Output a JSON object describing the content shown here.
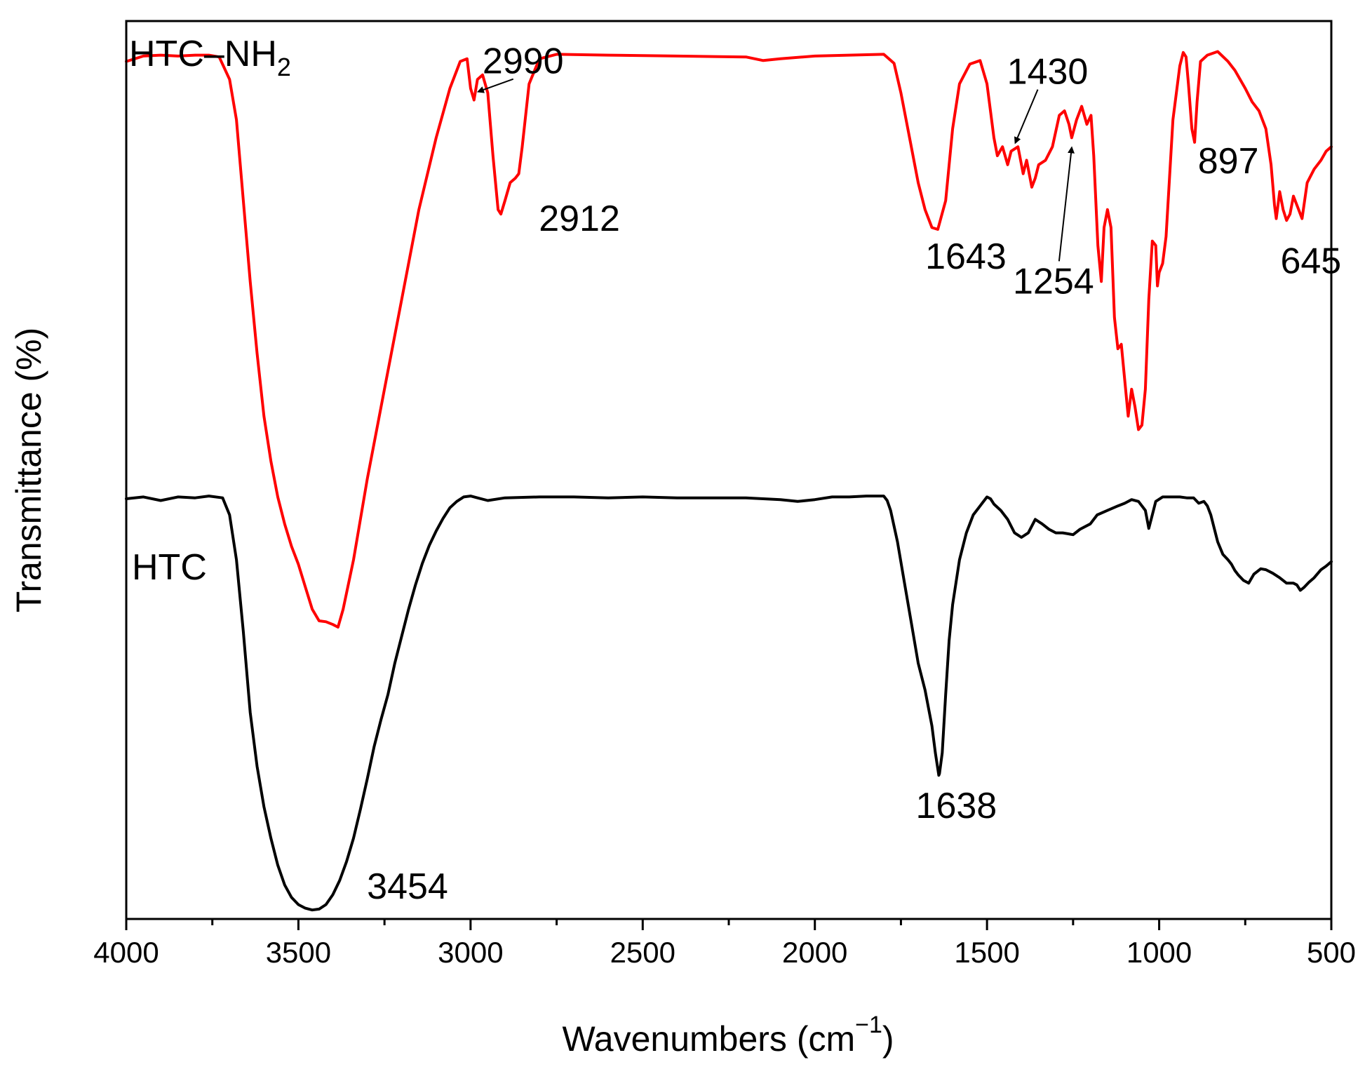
{
  "chart_data": {
    "type": "line",
    "title": "",
    "xlabel": "Wavenumbers (cm",
    "xlabel_sup": "−1",
    "xlabel_end": ")",
    "ylabel": "Transmittance (%)",
    "xlim": [
      4000,
      500
    ],
    "x_reversed": true,
    "ylim": [
      0,
      100
    ],
    "y_ticks_shown": false,
    "grid": false,
    "legend": "none (series labelled inline)",
    "x_ticks": [
      4000,
      3500,
      3000,
      2500,
      2000,
      1500,
      1000,
      500
    ],
    "x_tick_labels": [
      "4000",
      "3500",
      "3000",
      "2500",
      "2000",
      "1500",
      "1000",
      "500"
    ],
    "series": [
      {
        "name": "HTC–NH",
        "name_sub": "2",
        "color": "#ff0000",
        "points": [
          [
            4000,
            95.5
          ],
          [
            3950,
            96.1
          ],
          [
            3900,
            96.2
          ],
          [
            3850,
            96.1
          ],
          [
            3800,
            96.2
          ],
          [
            3760,
            96.2
          ],
          [
            3730,
            96.0
          ],
          [
            3700,
            93.5
          ],
          [
            3680,
            89
          ],
          [
            3660,
            80
          ],
          [
            3640,
            71
          ],
          [
            3620,
            63
          ],
          [
            3600,
            56
          ],
          [
            3580,
            51
          ],
          [
            3560,
            47
          ],
          [
            3540,
            44
          ],
          [
            3520,
            41.5
          ],
          [
            3500,
            39.5
          ],
          [
            3480,
            37
          ],
          [
            3460,
            34.5
          ],
          [
            3440,
            33.2
          ],
          [
            3420,
            33.1
          ],
          [
            3400,
            32.8
          ],
          [
            3385,
            32.5
          ],
          [
            3370,
            34.5
          ],
          [
            3340,
            40
          ],
          [
            3300,
            49
          ],
          [
            3250,
            59
          ],
          [
            3200,
            69
          ],
          [
            3150,
            79
          ],
          [
            3100,
            87
          ],
          [
            3060,
            92.5
          ],
          [
            3030,
            95.5
          ],
          [
            3010,
            95.8
          ],
          [
            3000,
            92.5
          ],
          [
            2990,
            91.2
          ],
          [
            2980,
            93.5
          ],
          [
            2965,
            94.0
          ],
          [
            2950,
            92
          ],
          [
            2935,
            85
          ],
          [
            2920,
            79
          ],
          [
            2912,
            78.5
          ],
          [
            2900,
            80
          ],
          [
            2885,
            82
          ],
          [
            2870,
            82.5
          ],
          [
            2860,
            83
          ],
          [
            2850,
            86
          ],
          [
            2830,
            93
          ],
          [
            2800,
            95.8
          ],
          [
            2750,
            96.3
          ],
          [
            2600,
            96.2
          ],
          [
            2400,
            96.1
          ],
          [
            2200,
            96.0
          ],
          [
            2150,
            95.6
          ],
          [
            2100,
            95.8
          ],
          [
            2000,
            96.1
          ],
          [
            1900,
            96.2
          ],
          [
            1800,
            96.3
          ],
          [
            1770,
            95.3
          ],
          [
            1750,
            92
          ],
          [
            1720,
            86
          ],
          [
            1700,
            82
          ],
          [
            1680,
            79
          ],
          [
            1660,
            77
          ],
          [
            1643,
            76.8
          ],
          [
            1620,
            80
          ],
          [
            1600,
            88
          ],
          [
            1580,
            93
          ],
          [
            1550,
            95.2
          ],
          [
            1520,
            95.6
          ],
          [
            1500,
            93
          ],
          [
            1480,
            87
          ],
          [
            1470,
            85
          ],
          [
            1455,
            86
          ],
          [
            1440,
            84
          ],
          [
            1430,
            85.5
          ],
          [
            1410,
            86
          ],
          [
            1395,
            83
          ],
          [
            1385,
            84.5
          ],
          [
            1370,
            81.5
          ],
          [
            1360,
            82.5
          ],
          [
            1350,
            84
          ],
          [
            1330,
            84.5
          ],
          [
            1310,
            86
          ],
          [
            1290,
            89.5
          ],
          [
            1275,
            90
          ],
          [
            1262,
            88.5
          ],
          [
            1254,
            87
          ],
          [
            1240,
            89
          ],
          [
            1225,
            90.5
          ],
          [
            1210,
            88.5
          ],
          [
            1198,
            89.5
          ],
          [
            1190,
            85
          ],
          [
            1178,
            75
          ],
          [
            1168,
            71
          ],
          [
            1160,
            77
          ],
          [
            1150,
            79
          ],
          [
            1140,
            77
          ],
          [
            1130,
            67
          ],
          [
            1120,
            63.5
          ],
          [
            1110,
            64
          ],
          [
            1100,
            60
          ],
          [
            1090,
            56
          ],
          [
            1080,
            59
          ],
          [
            1070,
            57
          ],
          [
            1060,
            54.5
          ],
          [
            1050,
            55
          ],
          [
            1040,
            59
          ],
          [
            1030,
            69
          ],
          [
            1020,
            75.5
          ],
          [
            1010,
            75
          ],
          [
            1005,
            70.5
          ],
          [
            1000,
            72
          ],
          [
            990,
            73
          ],
          [
            980,
            76
          ],
          [
            960,
            89
          ],
          [
            940,
            95
          ],
          [
            930,
            96.5
          ],
          [
            922,
            96
          ],
          [
            915,
            93
          ],
          [
            905,
            88
          ],
          [
            897,
            86.5
          ],
          [
            890,
            91
          ],
          [
            880,
            95.5
          ],
          [
            860,
            96.2
          ],
          [
            830,
            96.6
          ],
          [
            800,
            95.5
          ],
          [
            780,
            94.5
          ],
          [
            750,
            92.5
          ],
          [
            730,
            91
          ],
          [
            710,
            90
          ],
          [
            690,
            88
          ],
          [
            675,
            84
          ],
          [
            665,
            79.5
          ],
          [
            660,
            78
          ],
          [
            650,
            81
          ],
          [
            640,
            79
          ],
          [
            630,
            77.8
          ],
          [
            620,
            78.5
          ],
          [
            610,
            80.5
          ],
          [
            595,
            79
          ],
          [
            585,
            78
          ],
          [
            570,
            82
          ],
          [
            550,
            83.5
          ],
          [
            530,
            84.5
          ],
          [
            515,
            85.5
          ],
          [
            500,
            86
          ]
        ]
      },
      {
        "name": "HTC",
        "color": "#000000",
        "points": [
          [
            4000,
            46.8
          ],
          [
            3950,
            47.0
          ],
          [
            3900,
            46.6
          ],
          [
            3850,
            47.0
          ],
          [
            3800,
            46.9
          ],
          [
            3760,
            47.1
          ],
          [
            3720,
            46.9
          ],
          [
            3700,
            45
          ],
          [
            3680,
            40
          ],
          [
            3660,
            32
          ],
          [
            3640,
            23
          ],
          [
            3620,
            17
          ],
          [
            3600,
            12.5
          ],
          [
            3580,
            9
          ],
          [
            3560,
            6
          ],
          [
            3540,
            3.8
          ],
          [
            3520,
            2.4
          ],
          [
            3500,
            1.6
          ],
          [
            3480,
            1.2
          ],
          [
            3460,
            1.0
          ],
          [
            3440,
            1.1
          ],
          [
            3420,
            1.6
          ],
          [
            3400,
            2.7
          ],
          [
            3380,
            4.3
          ],
          [
            3360,
            6.4
          ],
          [
            3340,
            9.0
          ],
          [
            3320,
            12.2
          ],
          [
            3300,
            15.6
          ],
          [
            3280,
            19.2
          ],
          [
            3260,
            22.2
          ],
          [
            3240,
            25
          ],
          [
            3220,
            28.5
          ],
          [
            3200,
            31.5
          ],
          [
            3180,
            34.5
          ],
          [
            3160,
            37.2
          ],
          [
            3140,
            39.6
          ],
          [
            3120,
            41.6
          ],
          [
            3100,
            43.2
          ],
          [
            3080,
            44.6
          ],
          [
            3060,
            45.8
          ],
          [
            3040,
            46.5
          ],
          [
            3020,
            47.0
          ],
          [
            3000,
            47.1
          ],
          [
            2980,
            46.9
          ],
          [
            2950,
            46.6
          ],
          [
            2900,
            46.9
          ],
          [
            2800,
            47.0
          ],
          [
            2700,
            47.0
          ],
          [
            2600,
            46.9
          ],
          [
            2500,
            47.0
          ],
          [
            2400,
            46.9
          ],
          [
            2300,
            46.9
          ],
          [
            2200,
            46.9
          ],
          [
            2100,
            46.7
          ],
          [
            2050,
            46.5
          ],
          [
            2000,
            46.7
          ],
          [
            1950,
            47.0
          ],
          [
            1900,
            47.0
          ],
          [
            1850,
            47.1
          ],
          [
            1800,
            47.1
          ],
          [
            1790,
            46.6
          ],
          [
            1780,
            45.5
          ],
          [
            1760,
            42
          ],
          [
            1740,
            37.5
          ],
          [
            1720,
            33
          ],
          [
            1700,
            28.5
          ],
          [
            1680,
            25.5
          ],
          [
            1670,
            23.5
          ],
          [
            1660,
            21.5
          ],
          [
            1650,
            18.5
          ],
          [
            1640,
            16.0
          ],
          [
            1638,
            16.2
          ],
          [
            1630,
            18.5
          ],
          [
            1620,
            25
          ],
          [
            1610,
            31
          ],
          [
            1600,
            35
          ],
          [
            1580,
            40
          ],
          [
            1560,
            43
          ],
          [
            1540,
            45
          ],
          [
            1520,
            46
          ],
          [
            1500,
            47.0
          ],
          [
            1490,
            46.8
          ],
          [
            1480,
            46.2
          ],
          [
            1460,
            45.5
          ],
          [
            1440,
            44.5
          ],
          [
            1420,
            43
          ],
          [
            1400,
            42.5
          ],
          [
            1380,
            43
          ],
          [
            1360,
            44.5
          ],
          [
            1340,
            44
          ],
          [
            1320,
            43.4
          ],
          [
            1300,
            43.0
          ],
          [
            1280,
            43
          ],
          [
            1250,
            42.8
          ],
          [
            1230,
            43.4
          ],
          [
            1200,
            44
          ],
          [
            1180,
            45
          ],
          [
            1150,
            45.5
          ],
          [
            1120,
            46
          ],
          [
            1100,
            46.3
          ],
          [
            1080,
            46.7
          ],
          [
            1060,
            46.5
          ],
          [
            1040,
            45.5
          ],
          [
            1030,
            43.5
          ],
          [
            1020,
            45
          ],
          [
            1010,
            46.5
          ],
          [
            990,
            47.0
          ],
          [
            960,
            47.0
          ],
          [
            940,
            47.0
          ],
          [
            920,
            46.9
          ],
          [
            900,
            46.9
          ],
          [
            885,
            46.3
          ],
          [
            870,
            46.5
          ],
          [
            860,
            46.0
          ],
          [
            850,
            45
          ],
          [
            840,
            43.5
          ],
          [
            830,
            42
          ],
          [
            815,
            40.6
          ],
          [
            800,
            40
          ],
          [
            790,
            39.5
          ],
          [
            780,
            38.8
          ],
          [
            770,
            38.3
          ],
          [
            755,
            37.7
          ],
          [
            740,
            37.4
          ],
          [
            725,
            38.4
          ],
          [
            705,
            39.0
          ],
          [
            690,
            38.9
          ],
          [
            670,
            38.5
          ],
          [
            650,
            38.0
          ],
          [
            630,
            37.4
          ],
          [
            610,
            37.4
          ],
          [
            600,
            37.2
          ],
          [
            590,
            36.6
          ],
          [
            580,
            36.9
          ],
          [
            565,
            37.5
          ],
          [
            550,
            38.0
          ],
          [
            530,
            38.9
          ],
          [
            515,
            39.3
          ],
          [
            500,
            39.8
          ]
        ]
      }
    ],
    "annotations": [
      {
        "text": "2990",
        "x": 2990,
        "y": 91.2,
        "arrow": true
      },
      {
        "text": "2912",
        "x": 2912,
        "y": 78.5
      },
      {
        "text": "1643",
        "x": 1643,
        "y": 76.8
      },
      {
        "text": "1430",
        "x": 1430,
        "y": 85.5,
        "arrow": true
      },
      {
        "text": "1254",
        "x": 1254,
        "y": 87,
        "arrow": true
      },
      {
        "text": "897",
        "x": 897,
        "y": 86.5
      },
      {
        "text": "645",
        "x": 645,
        "y": 78
      },
      {
        "text": "3454",
        "x": 3454,
        "y": 1.0
      },
      {
        "text": "1638",
        "x": 1638,
        "y": 16.0
      }
    ]
  }
}
